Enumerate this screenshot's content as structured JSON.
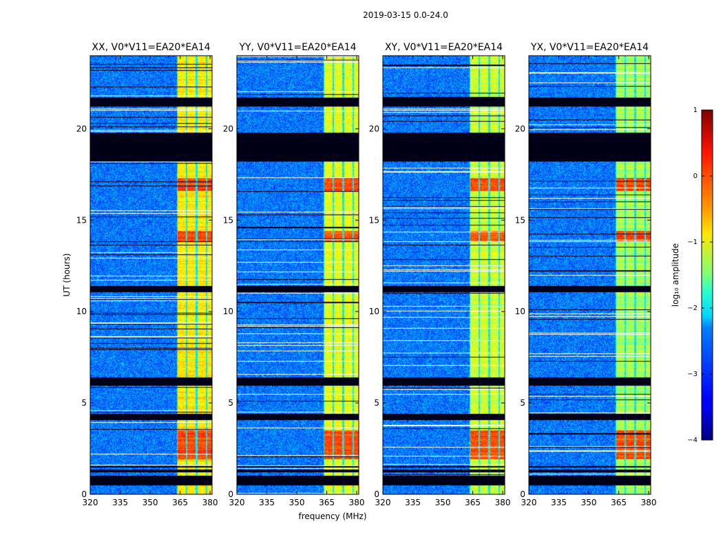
{
  "figure_title": "2019-03-15 0.0-24.0",
  "colors": {
    "background": "#ffffff",
    "axis": "#000000"
  },
  "colorbar": {
    "label": "log₁₀ amplitude",
    "colormap": "jet",
    "range": [
      -4,
      1
    ],
    "ticks": [
      -4,
      -3,
      -2,
      -1,
      0,
      1
    ],
    "tick_labels": [
      "−4",
      "−3",
      "−2",
      "−1",
      "0",
      "1"
    ]
  },
  "chart_data": {
    "type": "heatmap",
    "title": "2019-03-15 0.0-24.0",
    "xlabel": "frequency (MHz)",
    "ylabel": "UT (hours)",
    "xlim": [
      320,
      381
    ],
    "ylim": [
      0,
      24
    ],
    "xticks": [
      320,
      335,
      350,
      365,
      380
    ],
    "yticks": [
      0,
      5,
      10,
      15,
      20
    ],
    "value_label": "log10 amplitude",
    "value_range": [
      -4,
      1
    ],
    "panels": [
      {
        "title": "XX, V0*V11=EA20*EA14",
        "polarization": "XX"
      },
      {
        "title": "YY, V0*V11=EA20*EA14",
        "polarization": "YY"
      },
      {
        "title": "XY, V0*V11=EA20*EA14",
        "polarization": "XY"
      },
      {
        "title": "YX, V0*V11=EA20*EA14",
        "polarization": "YX"
      }
    ],
    "features": {
      "background_level": -2.8,
      "signal_band_mhz": [
        363.5,
        382
      ],
      "signal_subbands_mhz": [
        [
          363.8,
          367.8
        ],
        [
          368.6,
          372.8
        ],
        [
          373.6,
          377.8
        ],
        [
          378.6,
          382
        ]
      ],
      "signal_level_by_panel": [
        -0.8,
        -1.0,
        -1.1,
        -1.3
      ],
      "strong_signal_hours": [
        [
          1.9,
          3.5
        ],
        [
          13.8,
          14.4
        ],
        [
          16.6,
          17.3
        ]
      ],
      "strong_signal_level": 0.0,
      "no_data_hours": [
        [
          0.5,
          1.0
        ],
        [
          1.2,
          1.35
        ],
        [
          1.45,
          1.55
        ],
        [
          4.05,
          4.4
        ],
        [
          5.95,
          6.4
        ],
        [
          11.05,
          11.4
        ],
        [
          18.2,
          19.8
        ],
        [
          21.2,
          21.7
        ]
      ]
    }
  }
}
